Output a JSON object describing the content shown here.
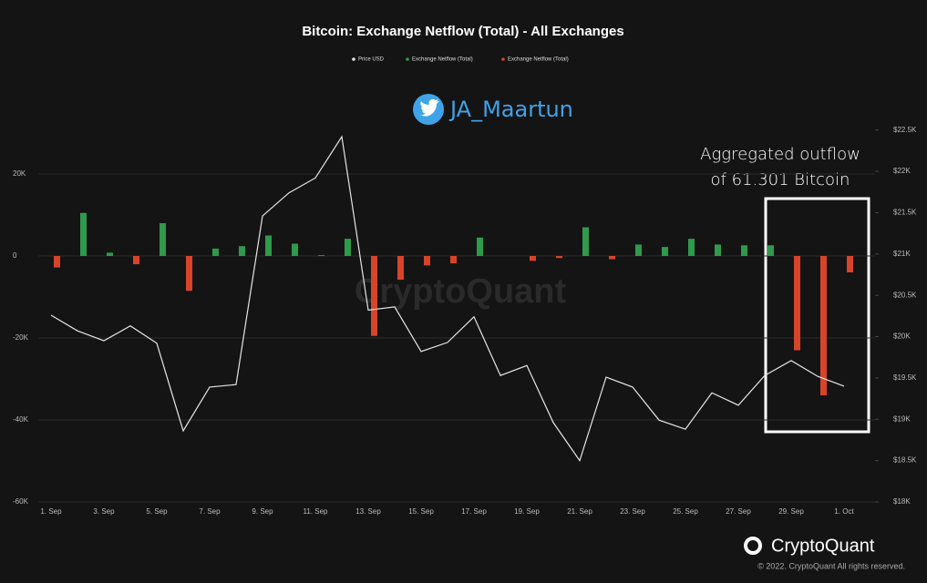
{
  "chart_data": {
    "type": "bar",
    "title": "Bitcoin: Exchange Netflow (Total) - All Exchanges",
    "categories": [
      "1. Sep",
      null,
      "3. Sep",
      null,
      "5. Sep",
      null,
      "7. Sep",
      null,
      "9. Sep",
      null,
      "11. Sep",
      null,
      "13. Sep",
      null,
      "15. Sep",
      null,
      "17. Sep",
      null,
      "19. Sep",
      null,
      "21. Sep",
      null,
      "23. Sep",
      null,
      "25. Sep",
      null,
      "27. Sep",
      null,
      "29. Sep",
      null,
      "1. Oct"
    ],
    "series": [
      {
        "name": "Price USD",
        "type": "line",
        "axis": "y2",
        "color": "#e6e6e6",
        "values": [
          20260,
          20070,
          19950,
          20130,
          19920,
          18860,
          19390,
          19420,
          21460,
          21740,
          21920,
          22420,
          20320,
          20360,
          19820,
          19930,
          20240,
          19530,
          19650,
          18960,
          18500,
          19510,
          19390,
          18990,
          18880,
          19320,
          19170,
          19530,
          19710,
          19520,
          19400
        ]
      },
      {
        "name": "Exchange Netflow (Total)",
        "type": "bar",
        "color": "#2f9a4c",
        "values": [
          null,
          10500,
          800,
          null,
          8000,
          null,
          1800,
          2400,
          5000,
          3000,
          200,
          4200,
          null,
          null,
          null,
          null,
          4500,
          null,
          null,
          null,
          7000,
          null,
          2800,
          2200,
          4200,
          2800,
          2600,
          2600,
          null,
          null,
          null
        ]
      },
      {
        "name": "Exchange Netflow (Total)",
        "type": "bar",
        "color": "#d8442a",
        "values": [
          -2800,
          null,
          null,
          -2000,
          null,
          -8500,
          null,
          null,
          null,
          null,
          null,
          null,
          -19500,
          -5800,
          -2300,
          -1800,
          null,
          null,
          -1200,
          -500,
          null,
          -800,
          null,
          null,
          null,
          null,
          null,
          null,
          -23000,
          -34000,
          -4000
        ]
      }
    ],
    "ylim": [
      -60000,
      40000
    ],
    "yticks": [
      {
        "value": -60000,
        "label": "-60K"
      },
      {
        "value": -40000,
        "label": "-40K"
      },
      {
        "value": -20000,
        "label": "-20K"
      },
      0,
      {
        "value": 20000,
        "label": "20K"
      }
    ],
    "y2lim": [
      18000,
      22960
    ],
    "y2ticks": [
      {
        "value": 18000,
        "label": "$18K"
      },
      {
        "value": 18500,
        "label": "$18.5K"
      },
      {
        "value": 19000,
        "label": "$19K"
      },
      {
        "value": 19500,
        "label": "$19.5K"
      },
      {
        "value": 20000,
        "label": "$20K"
      },
      {
        "value": 20500,
        "label": "$20.5K"
      },
      {
        "value": 21000,
        "label": "$21K"
      },
      {
        "value": 21500,
        "label": "$21.5K"
      },
      {
        "value": 22000,
        "label": "$22K"
      },
      {
        "value": 22500,
        "label": "$22.5K"
      }
    ],
    "grid": true,
    "annotations": [
      "JA_Maartun",
      "Aggregated outflow",
      "of 61.301 Bitcoin"
    ],
    "watermark": "CryptoQuant",
    "brand": "CryptoQuant",
    "copyright": "© 2022. CryptoQuant All rights reserved."
  }
}
